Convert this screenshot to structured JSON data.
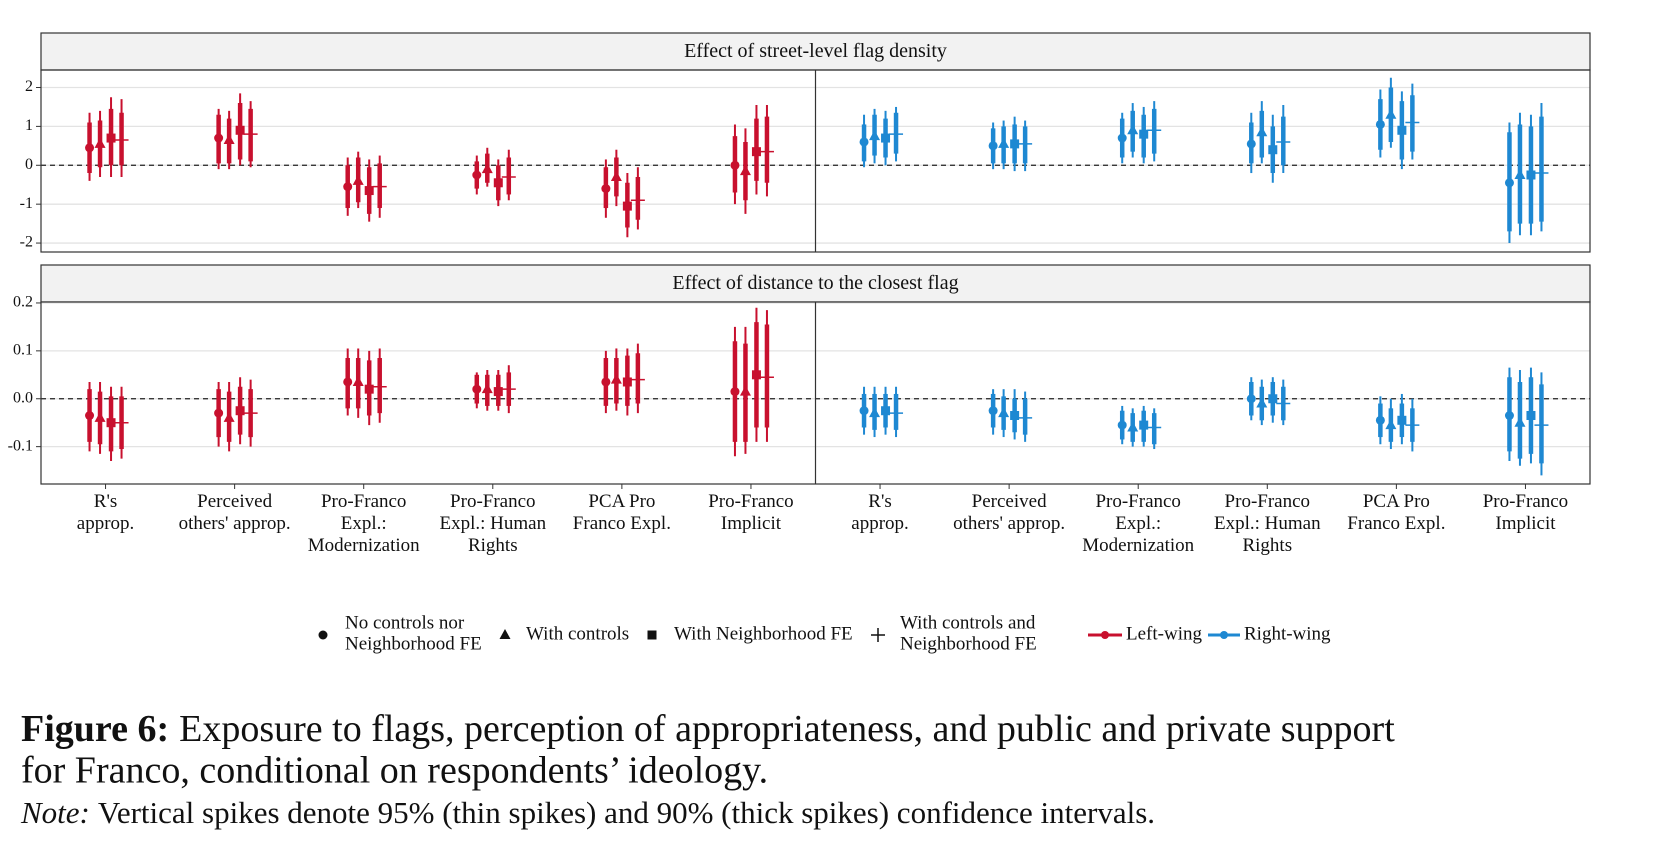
{
  "chart_data": {
    "type": "pointrange",
    "categories": [
      "R's\napprop.",
      "Perceived\nothers' approp.",
      "Pro-Franco\nExpl.:\nModernization",
      "Pro-Franco\nExpl.: Human\nRights",
      "PCA Pro\nFranco Expl.",
      "Pro-Franco\nImplicit",
      "R's\napprop.",
      "Perceived\nothers' approp.",
      "Pro-Franco\nExpl.:\nModernization",
      "Pro-Franco\nExpl.: Human\nRights",
      "PCA Pro\nFranco Expl.",
      "Pro-Franco\nImplicit"
    ],
    "groups": [
      {
        "name": "Left-wing",
        "color": "#c8102e"
      },
      {
        "name": "Right-wing",
        "color": "#1e88d2"
      }
    ],
    "estimators": [
      {
        "name": "No controls nor\nNeighborhood FE",
        "marker": "circle"
      },
      {
        "name": "With controls",
        "marker": "triangle"
      },
      {
        "name": "With Neighborhood FE",
        "marker": "square"
      },
      {
        "name": "With controls and\nNeighborhood FE",
        "marker": "plus"
      }
    ],
    "grid": true,
    "panels": [
      {
        "title": "Effect of street-level flag density",
        "ylim": [
          -2.23,
          2.45
        ],
        "yticks": [
          -2,
          -1,
          0,
          1,
          2
        ],
        "series": [
          {
            "values": [
              0.45,
              0.7,
              -0.55,
              -0.25,
              -0.6,
              0.0,
              0.6,
              0.5,
              0.7,
              0.55,
              1.05,
              -0.45
            ],
            "ci90": [
              [
                -0.2,
                1.1
              ],
              [
                0.05,
                1.3
              ],
              [
                -1.1,
                0.0
              ],
              [
                -0.6,
                0.1
              ],
              [
                -1.1,
                -0.05
              ],
              [
                -0.7,
                0.75
              ],
              [
                0.1,
                1.05
              ],
              [
                0.05,
                0.95
              ],
              [
                0.2,
                1.2
              ],
              [
                0.05,
                1.1
              ],
              [
                0.4,
                1.7
              ],
              [
                -1.7,
                0.85
              ]
            ],
            "ci95": [
              [
                -0.4,
                1.35
              ],
              [
                -0.1,
                1.45
              ],
              [
                -1.3,
                0.2
              ],
              [
                -0.75,
                0.25
              ],
              [
                -1.35,
                0.15
              ],
              [
                -1.0,
                1.05
              ],
              [
                -0.05,
                1.3
              ],
              [
                -0.1,
                1.1
              ],
              [
                0.05,
                1.35
              ],
              [
                -0.2,
                1.35
              ],
              [
                0.2,
                1.95
              ],
              [
                -2.0,
                1.1
              ]
            ]
          },
          {
            "values": [
              0.55,
              0.65,
              -0.4,
              -0.1,
              -0.3,
              -0.15,
              0.75,
              0.55,
              0.9,
              0.85,
              1.3,
              -0.25
            ],
            "ci90": [
              [
                -0.05,
                1.15
              ],
              [
                0.05,
                1.2
              ],
              [
                -0.95,
                0.2
              ],
              [
                -0.45,
                0.3
              ],
              [
                -0.8,
                0.2
              ],
              [
                -0.9,
                0.6
              ],
              [
                0.25,
                1.3
              ],
              [
                0.05,
                1.0
              ],
              [
                0.35,
                1.4
              ],
              [
                0.2,
                1.4
              ],
              [
                0.6,
                2.0
              ],
              [
                -1.5,
                1.05
              ]
            ],
            "ci95": [
              [
                -0.3,
                1.4
              ],
              [
                -0.1,
                1.4
              ],
              [
                -1.1,
                0.35
              ],
              [
                -0.55,
                0.45
              ],
              [
                -1.05,
                0.4
              ],
              [
                -1.25,
                0.95
              ],
              [
                0.05,
                1.45
              ],
              [
                -0.1,
                1.15
              ],
              [
                0.2,
                1.6
              ],
              [
                0.05,
                1.65
              ],
              [
                0.45,
                2.25
              ],
              [
                -1.8,
                1.35
              ]
            ]
          },
          {
            "values": [
              0.7,
              0.9,
              -0.65,
              -0.45,
              -1.05,
              0.35,
              0.7,
              0.55,
              0.8,
              0.4,
              0.9,
              -0.25
            ],
            "ci90": [
              [
                0.0,
                1.45
              ],
              [
                0.15,
                1.6
              ],
              [
                -1.25,
                -0.05
              ],
              [
                -0.9,
                0.0
              ],
              [
                -1.6,
                -0.45
              ],
              [
                -0.4,
                1.2
              ],
              [
                0.2,
                1.2
              ],
              [
                0.05,
                1.05
              ],
              [
                0.2,
                1.3
              ],
              [
                -0.2,
                1.0
              ],
              [
                0.15,
                1.65
              ],
              [
                -1.5,
                1.0
              ]
            ],
            "ci95": [
              [
                -0.3,
                1.75
              ],
              [
                0.0,
                1.85
              ],
              [
                -1.45,
                0.15
              ],
              [
                -1.05,
                0.15
              ],
              [
                -1.85,
                -0.2
              ],
              [
                -0.75,
                1.55
              ],
              [
                0.0,
                1.4
              ],
              [
                -0.15,
                1.25
              ],
              [
                0.05,
                1.5
              ],
              [
                -0.45,
                1.3
              ],
              [
                -0.1,
                1.9
              ],
              [
                -1.8,
                1.3
              ]
            ]
          },
          {
            "values": [
              0.65,
              0.8,
              -0.55,
              -0.3,
              -0.9,
              0.35,
              0.8,
              0.55,
              0.9,
              0.6,
              1.1,
              -0.2
            ],
            "ci90": [
              [
                0.0,
                1.35
              ],
              [
                0.1,
                1.45
              ],
              [
                -1.1,
                0.05
              ],
              [
                -0.75,
                0.2
              ],
              [
                -1.4,
                -0.3
              ],
              [
                -0.45,
                1.25
              ],
              [
                0.3,
                1.35
              ],
              [
                0.05,
                1.0
              ],
              [
                0.3,
                1.45
              ],
              [
                0.0,
                1.25
              ],
              [
                0.35,
                1.8
              ],
              [
                -1.45,
                1.25
              ]
            ],
            "ci95": [
              [
                -0.3,
                1.7
              ],
              [
                -0.05,
                1.65
              ],
              [
                -1.35,
                0.25
              ],
              [
                -0.9,
                0.4
              ],
              [
                -1.65,
                -0.05
              ],
              [
                -0.8,
                1.55
              ],
              [
                0.1,
                1.5
              ],
              [
                -0.15,
                1.15
              ],
              [
                0.1,
                1.65
              ],
              [
                -0.2,
                1.55
              ],
              [
                0.15,
                2.1
              ],
              [
                -1.7,
                1.6
              ]
            ]
          }
        ]
      },
      {
        "title": "Effect of distance to the closest flag",
        "ylim": [
          -0.178,
          0.202
        ],
        "yticks": [
          -0.1,
          {
            "value": 0,
            "label": "0.0"
          },
          0.1,
          0.2
        ],
        "series": [
          {
            "values": [
              -0.035,
              -0.03,
              0.035,
              0.02,
              0.035,
              0.015,
              -0.025,
              -0.025,
              -0.055,
              0.0,
              -0.045,
              -0.035
            ],
            "ci90": [
              [
                -0.09,
                0.02
              ],
              [
                -0.08,
                0.02
              ],
              [
                -0.02,
                0.085
              ],
              [
                -0.01,
                0.05
              ],
              [
                -0.015,
                0.085
              ],
              [
                -0.09,
                0.12
              ],
              [
                -0.06,
                0.01
              ],
              [
                -0.06,
                0.01
              ],
              [
                -0.085,
                -0.025
              ],
              [
                -0.035,
                0.035
              ],
              [
                -0.08,
                -0.01
              ],
              [
                -0.11,
                0.045
              ]
            ],
            "ci95": [
              [
                -0.11,
                0.035
              ],
              [
                -0.1,
                0.035
              ],
              [
                -0.035,
                0.105
              ],
              [
                -0.02,
                0.055
              ],
              [
                -0.03,
                0.1
              ],
              [
                -0.12,
                0.15
              ],
              [
                -0.075,
                0.025
              ],
              [
                -0.075,
                0.02
              ],
              [
                -0.095,
                -0.015
              ],
              [
                -0.045,
                0.045
              ],
              [
                -0.095,
                0.005
              ],
              [
                -0.13,
                0.065
              ]
            ]
          },
          {
            "values": [
              -0.04,
              -0.04,
              0.035,
              0.02,
              0.04,
              0.015,
              -0.03,
              -0.03,
              -0.06,
              -0.01,
              -0.055,
              -0.05
            ],
            "ci90": [
              [
                -0.095,
                0.015
              ],
              [
                -0.09,
                0.015
              ],
              [
                -0.02,
                0.085
              ],
              [
                -0.015,
                0.05
              ],
              [
                -0.01,
                0.085
              ],
              [
                -0.09,
                0.115
              ],
              [
                -0.065,
                0.01
              ],
              [
                -0.065,
                0.005
              ],
              [
                -0.09,
                -0.03
              ],
              [
                -0.045,
                0.025
              ],
              [
                -0.09,
                -0.02
              ],
              [
                -0.125,
                0.035
              ]
            ],
            "ci95": [
              [
                -0.115,
                0.035
              ],
              [
                -0.11,
                0.035
              ],
              [
                -0.04,
                0.105
              ],
              [
                -0.025,
                0.06
              ],
              [
                -0.025,
                0.105
              ],
              [
                -0.115,
                0.15
              ],
              [
                -0.08,
                0.025
              ],
              [
                -0.08,
                0.02
              ],
              [
                -0.1,
                -0.02
              ],
              [
                -0.055,
                0.04
              ],
              [
                -0.105,
                0.0
              ],
              [
                -0.14,
                0.06
              ]
            ]
          },
          {
            "values": [
              -0.05,
              -0.025,
              0.02,
              0.015,
              0.035,
              0.05,
              -0.025,
              -0.035,
              -0.055,
              0.0,
              -0.045,
              -0.035
            ],
            "ci90": [
              [
                -0.11,
                0.005
              ],
              [
                -0.075,
                0.025
              ],
              [
                -0.035,
                0.08
              ],
              [
                -0.015,
                0.05
              ],
              [
                -0.015,
                0.09
              ],
              [
                -0.06,
                0.16
              ],
              [
                -0.06,
                0.01
              ],
              [
                -0.07,
                0.0
              ],
              [
                -0.09,
                -0.025
              ],
              [
                -0.035,
                0.035
              ],
              [
                -0.08,
                -0.01
              ],
              [
                -0.115,
                0.045
              ]
            ],
            "ci95": [
              [
                -0.13,
                0.025
              ],
              [
                -0.095,
                0.045
              ],
              [
                -0.055,
                0.1
              ],
              [
                -0.025,
                0.06
              ],
              [
                -0.035,
                0.105
              ],
              [
                -0.09,
                0.19
              ],
              [
                -0.075,
                0.025
              ],
              [
                -0.085,
                0.02
              ],
              [
                -0.1,
                -0.015
              ],
              [
                -0.05,
                0.045
              ],
              [
                -0.095,
                0.01
              ],
              [
                -0.135,
                0.065
              ]
            ]
          },
          {
            "values": [
              -0.05,
              -0.03,
              0.025,
              0.02,
              0.04,
              0.045,
              -0.03,
              -0.04,
              -0.06,
              -0.01,
              -0.055,
              -0.055
            ],
            "ci90": [
              [
                -0.105,
                0.005
              ],
              [
                -0.08,
                0.02
              ],
              [
                -0.03,
                0.085
              ],
              [
                -0.015,
                0.055
              ],
              [
                -0.01,
                0.095
              ],
              [
                -0.06,
                0.155
              ],
              [
                -0.065,
                0.01
              ],
              [
                -0.075,
                0.0
              ],
              [
                -0.095,
                -0.03
              ],
              [
                -0.045,
                0.025
              ],
              [
                -0.09,
                -0.02
              ],
              [
                -0.135,
                0.03
              ]
            ],
            "ci95": [
              [
                -0.125,
                0.025
              ],
              [
                -0.1,
                0.04
              ],
              [
                -0.05,
                0.105
              ],
              [
                -0.03,
                0.07
              ],
              [
                -0.03,
                0.115
              ],
              [
                -0.09,
                0.185
              ],
              [
                -0.08,
                0.025
              ],
              [
                -0.09,
                0.015
              ],
              [
                -0.105,
                -0.02
              ],
              [
                -0.055,
                0.04
              ],
              [
                -0.11,
                0.0
              ],
              [
                -0.16,
                0.055
              ]
            ]
          }
        ]
      }
    ]
  },
  "caption": {
    "label": "Figure 6:",
    "text": "Exposure to flags, perception of appropriateness, and public and private support",
    "text2": "for Franco, conditional on respondents’ ideology.",
    "note_label": "Note:",
    "note": "Vertical spikes denote 95% (thin spikes) and 90% (thick spikes) confidence intervals."
  }
}
